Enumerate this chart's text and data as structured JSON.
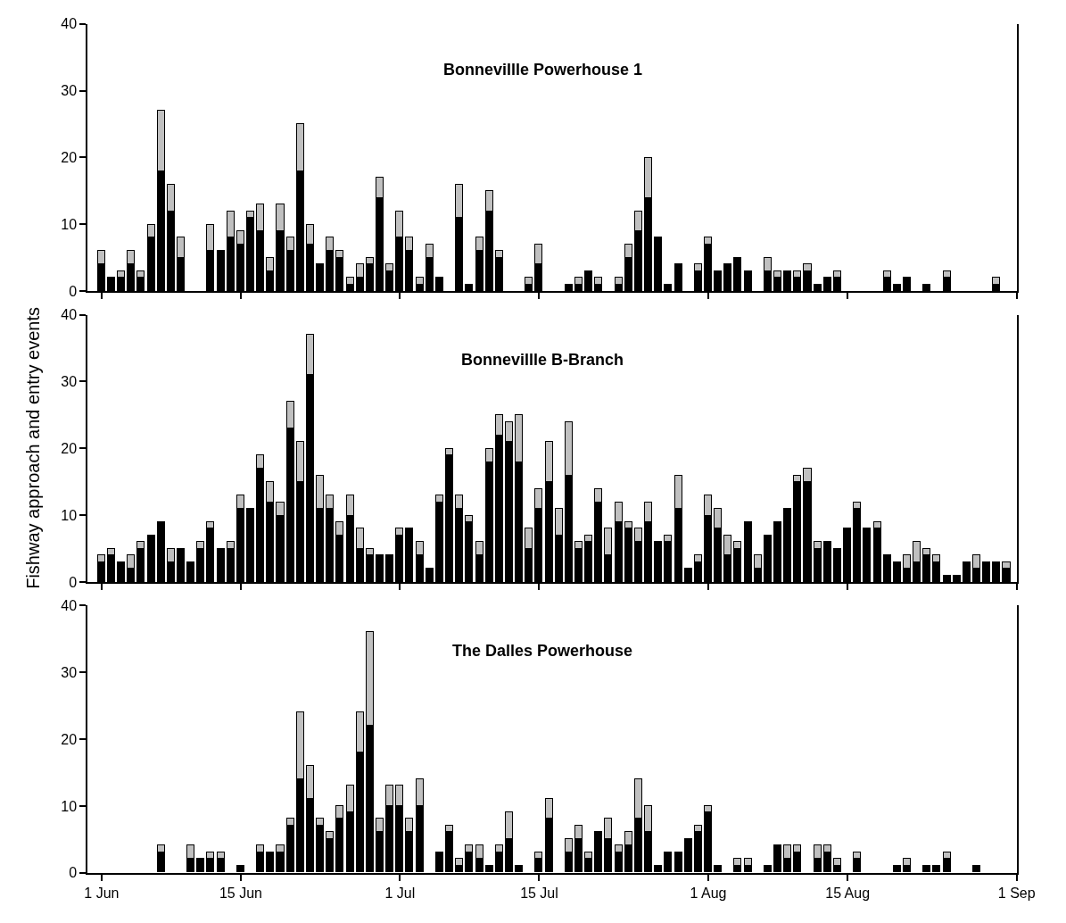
{
  "chart_data": [
    {
      "type": "bar",
      "title": "Bonnevillle Powerhouse 1",
      "stacked": true,
      "tick_labels": "y",
      "x": [
        "--06-01",
        "--06-02",
        "--06-03",
        "--06-04",
        "--06-05",
        "--06-06",
        "--06-07",
        "--06-08",
        "--06-09",
        "--06-10",
        "--06-11",
        "--06-12",
        "--06-13",
        "--06-14",
        "--06-15",
        "--06-16",
        "--06-17",
        "--06-18",
        "--06-19",
        "--06-20",
        "--06-21",
        "--06-22",
        "--06-23",
        "--06-24",
        "--06-25",
        "--06-26",
        "--06-27",
        "--06-28",
        "--06-29",
        "--06-30",
        "--07-01",
        "--07-02",
        "--07-03",
        "--07-04",
        "--07-05",
        "--07-06",
        "--07-07",
        "--07-08",
        "--07-09",
        "--07-10",
        "--07-11",
        "--07-12",
        "--07-13",
        "--07-14",
        "--07-15",
        "--07-16",
        "--07-17",
        "--07-18",
        "--07-19",
        "--07-20",
        "--07-21",
        "--07-22",
        "--07-23",
        "--07-24",
        "--07-25",
        "--07-26",
        "--07-27",
        "--07-28",
        "--07-29",
        "--07-30",
        "--07-31",
        "--08-01",
        "--08-02",
        "--08-03",
        "--08-04",
        "--08-05",
        "--08-06",
        "--08-07",
        "--08-08",
        "--08-09",
        "--08-10",
        "--08-11",
        "--08-12",
        "--08-13",
        "--08-14",
        "--08-15",
        "--08-16",
        "--08-17",
        "--08-18",
        "--08-19",
        "--08-20",
        "--08-21",
        "--08-22",
        "--08-23",
        "--08-24",
        "--08-25",
        "--08-26",
        "--08-27",
        "--08-28",
        "--08-29",
        "--08-30"
      ],
      "xlim": [
        "--05-30T14:00",
        "--09-01"
      ],
      "xticks": [
        {
          "value": "--06-01",
          "label": "1 Jun"
        },
        {
          "value": "--06-15",
          "label": "15 Jun"
        },
        {
          "value": "--07-01",
          "label": "1 Jul"
        },
        {
          "value": "--07-15",
          "label": "15 Jul"
        },
        {
          "value": "--08-01",
          "label": "1 Aug"
        },
        {
          "value": "--08-15",
          "label": "15 Aug"
        },
        {
          "value": "--09-01",
          "label": "1 Sep"
        }
      ],
      "ylim": [
        0,
        40
      ],
      "yticks": [
        0,
        10,
        20,
        30,
        40
      ],
      "series": [
        {
          "color": "#000000",
          "values": [
            4,
            2,
            2,
            4,
            2,
            8,
            18,
            12,
            5,
            null,
            null,
            6,
            6,
            8,
            7,
            11,
            9,
            3,
            9,
            6,
            18,
            7,
            4,
            6,
            5,
            1,
            2,
            4,
            14,
            3,
            8,
            6,
            1,
            5,
            2,
            null,
            11,
            1,
            6,
            12,
            5,
            null,
            null,
            1,
            4,
            null,
            null,
            1,
            1,
            3,
            1,
            null,
            1,
            5,
            9,
            14,
            8,
            1,
            4,
            null,
            3,
            7,
            3,
            4,
            5,
            3,
            null,
            3,
            2,
            3,
            2,
            3,
            1,
            2,
            2,
            null,
            null,
            null,
            null,
            2,
            1,
            2,
            null,
            1,
            null,
            2,
            null,
            null,
            null,
            null,
            1
          ]
        },
        {
          "color": "#c0c0c0",
          "values": [
            2,
            null,
            1,
            2,
            1,
            2,
            9,
            4,
            3,
            null,
            null,
            4,
            null,
            4,
            2,
            1,
            4,
            2,
            4,
            2,
            7,
            3,
            null,
            2,
            1,
            1,
            2,
            1,
            3,
            1,
            4,
            2,
            1,
            2,
            null,
            null,
            5,
            null,
            2,
            3,
            1,
            null,
            null,
            1,
            3,
            null,
            null,
            null,
            1,
            null,
            1,
            null,
            1,
            2,
            3,
            6,
            null,
            null,
            null,
            null,
            1,
            1,
            null,
            null,
            null,
            null,
            null,
            2,
            1,
            null,
            1,
            1,
            null,
            null,
            1,
            null,
            null,
            null,
            null,
            1,
            null,
            null,
            null,
            null,
            null,
            1,
            null,
            null,
            null,
            null,
            1
          ]
        }
      ]
    },
    {
      "type": "bar",
      "title": "Bonnevillle B-Branch",
      "ylabel": "Fishway approach and entry events",
      "stacked": true,
      "tick_labels": "y",
      "x": [
        "--06-01",
        "--06-02",
        "--06-03",
        "--06-04",
        "--06-05",
        "--06-06",
        "--06-07",
        "--06-08",
        "--06-09",
        "--06-10",
        "--06-11",
        "--06-12",
        "--06-13",
        "--06-14",
        "--06-15",
        "--06-16",
        "--06-17",
        "--06-18",
        "--06-19",
        "--06-20",
        "--06-21",
        "--06-22",
        "--06-23",
        "--06-24",
        "--06-25",
        "--06-26",
        "--06-27",
        "--06-28",
        "--06-29",
        "--06-30",
        "--07-01",
        "--07-02",
        "--07-03",
        "--07-04",
        "--07-05",
        "--07-06",
        "--07-07",
        "--07-08",
        "--07-09",
        "--07-10",
        "--07-11",
        "--07-12",
        "--07-13",
        "--07-14",
        "--07-15",
        "--07-16",
        "--07-17",
        "--07-18",
        "--07-19",
        "--07-20",
        "--07-21",
        "--07-22",
        "--07-23",
        "--07-24",
        "--07-25",
        "--07-26",
        "--07-27",
        "--07-28",
        "--07-29",
        "--07-30",
        "--07-31",
        "--08-01",
        "--08-02",
        "--08-03",
        "--08-04",
        "--08-05",
        "--08-06",
        "--08-07",
        "--08-08",
        "--08-09",
        "--08-10",
        "--08-11",
        "--08-12",
        "--08-13",
        "--08-14",
        "--08-15",
        "--08-16",
        "--08-17",
        "--08-18",
        "--08-19",
        "--08-20",
        "--08-21",
        "--08-22",
        "--08-23",
        "--08-24",
        "--08-25",
        "--08-26",
        "--08-27",
        "--08-28",
        "--08-29",
        "--08-30",
        "--08-31"
      ],
      "xlim": [
        "--05-30T14:00",
        "--09-01"
      ],
      "xticks": [
        {
          "value": "--06-01",
          "label": "1 Jun"
        },
        {
          "value": "--06-15",
          "label": "15 Jun"
        },
        {
          "value": "--07-01",
          "label": "1 Jul"
        },
        {
          "value": "--07-15",
          "label": "15 Jul"
        },
        {
          "value": "--08-01",
          "label": "1 Aug"
        },
        {
          "value": "--08-15",
          "label": "15 Aug"
        },
        {
          "value": "--09-01",
          "label": "1 Sep"
        }
      ],
      "ylim": [
        0,
        40
      ],
      "yticks": [
        0,
        10,
        20,
        30,
        40
      ],
      "series": [
        {
          "color": "#000000",
          "values": [
            3,
            4,
            3,
            2,
            5,
            7,
            9,
            3,
            5,
            3,
            5,
            8,
            5,
            5,
            11,
            11,
            17,
            12,
            10,
            23,
            15,
            31,
            11,
            11,
            7,
            10,
            5,
            4,
            4,
            4,
            7,
            8,
            4,
            2,
            12,
            19,
            11,
            9,
            4,
            18,
            22,
            21,
            18,
            5,
            11,
            15,
            7,
            16,
            5,
            6,
            12,
            4,
            9,
            8,
            6,
            9,
            6,
            6,
            11,
            2,
            3,
            10,
            8,
            4,
            5,
            9,
            2,
            7,
            9,
            11,
            15,
            15,
            5,
            6,
            5,
            8,
            11,
            8,
            8,
            4,
            3,
            2,
            3,
            4,
            3,
            1,
            1,
            3,
            2,
            3,
            3,
            2
          ]
        },
        {
          "color": "#c0c0c0",
          "values": [
            1,
            1,
            null,
            2,
            1,
            null,
            null,
            2,
            null,
            null,
            1,
            1,
            null,
            1,
            2,
            null,
            2,
            3,
            2,
            4,
            6,
            6,
            5,
            2,
            2,
            3,
            3,
            1,
            null,
            null,
            1,
            null,
            2,
            null,
            1,
            1,
            2,
            1,
            2,
            2,
            3,
            3,
            7,
            3,
            3,
            6,
            4,
            8,
            1,
            1,
            2,
            4,
            3,
            1,
            2,
            3,
            null,
            1,
            5,
            null,
            1,
            3,
            3,
            3,
            1,
            null,
            2,
            null,
            null,
            null,
            1,
            2,
            1,
            null,
            null,
            null,
            1,
            null,
            1,
            null,
            null,
            2,
            3,
            1,
            1,
            null,
            null,
            null,
            2,
            null,
            null,
            1
          ]
        }
      ]
    },
    {
      "type": "bar",
      "title": "The Dalles Powerhouse",
      "stacked": true,
      "x": [
        "--06-07",
        "--06-08",
        "--06-09",
        "--06-10",
        "--06-11",
        "--06-12",
        "--06-13",
        "--06-14",
        "--06-15",
        "--06-16",
        "--06-17",
        "--06-18",
        "--06-19",
        "--06-20",
        "--06-21",
        "--06-22",
        "--06-23",
        "--06-24",
        "--06-25",
        "--06-26",
        "--06-27",
        "--06-28",
        "--06-29",
        "--06-30",
        "--07-01",
        "--07-02",
        "--07-03",
        "--07-04",
        "--07-05",
        "--07-06",
        "--07-07",
        "--07-08",
        "--07-09",
        "--07-10",
        "--07-11",
        "--07-12",
        "--07-13",
        "--07-14",
        "--07-15",
        "--07-16",
        "--07-17",
        "--07-18",
        "--07-19",
        "--07-20",
        "--07-21",
        "--07-22",
        "--07-23",
        "--07-24",
        "--07-25",
        "--07-26",
        "--07-27",
        "--07-28",
        "--07-29",
        "--07-30",
        "--07-31",
        "--08-01",
        "--08-02",
        "--08-03",
        "--08-04",
        "--08-05",
        "--08-06",
        "--08-07",
        "--08-08",
        "--08-09",
        "--08-10",
        "--08-11",
        "--08-12",
        "--08-13",
        "--08-14",
        "--08-15",
        "--08-16",
        "--08-17",
        "--08-18",
        "--08-19",
        "--08-20",
        "--08-21",
        "--08-22",
        "--08-23",
        "--08-24",
        "--08-25",
        "--08-26",
        "--08-27",
        "--08-28"
      ],
      "xlim": [
        "--05-30T14:00",
        "--09-01"
      ],
      "xticks": [
        {
          "value": "--06-01",
          "label": "1 Jun"
        },
        {
          "value": "--06-15",
          "label": "15 Jun"
        },
        {
          "value": "--07-01",
          "label": "1 Jul"
        },
        {
          "value": "--07-15",
          "label": "15 Jul"
        },
        {
          "value": "--08-01",
          "label": "1 Aug"
        },
        {
          "value": "--08-15",
          "label": "15 Aug"
        },
        {
          "value": "--09-01",
          "label": "1 Sep"
        }
      ],
      "ylim": [
        0,
        40
      ],
      "yticks": [
        0,
        10,
        20,
        30,
        40
      ],
      "series": [
        {
          "color": "#000000",
          "values": [
            3,
            null,
            null,
            2,
            2,
            2,
            2,
            null,
            1,
            null,
            3,
            3,
            3,
            7,
            14,
            11,
            7,
            5,
            8,
            9,
            18,
            22,
            6,
            10,
            10,
            6,
            10,
            null,
            3,
            6,
            1,
            3,
            2,
            1,
            3,
            5,
            1,
            null,
            2,
            8,
            null,
            3,
            5,
            2,
            6,
            5,
            3,
            4,
            8,
            6,
            1,
            3,
            3,
            5,
            6,
            9,
            1,
            null,
            1,
            1,
            null,
            1,
            4,
            2,
            3,
            null,
            2,
            3,
            1,
            null,
            2,
            null,
            null,
            null,
            1,
            1,
            null,
            1,
            1,
            2,
            null,
            null,
            1
          ]
        },
        {
          "color": "#c0c0c0",
          "values": [
            1,
            null,
            null,
            2,
            null,
            1,
            1,
            null,
            null,
            null,
            1,
            null,
            1,
            1,
            10,
            5,
            1,
            1,
            2,
            4,
            6,
            14,
            2,
            3,
            3,
            2,
            4,
            null,
            null,
            1,
            1,
            1,
            2,
            null,
            1,
            4,
            null,
            null,
            1,
            3,
            null,
            2,
            2,
            1,
            null,
            3,
            1,
            2,
            6,
            4,
            null,
            null,
            null,
            null,
            1,
            1,
            null,
            null,
            1,
            1,
            null,
            null,
            null,
            2,
            1,
            null,
            2,
            1,
            1,
            null,
            1,
            null,
            null,
            null,
            null,
            1,
            null,
            null,
            null,
            1,
            null,
            null,
            null
          ]
        }
      ]
    }
  ]
}
